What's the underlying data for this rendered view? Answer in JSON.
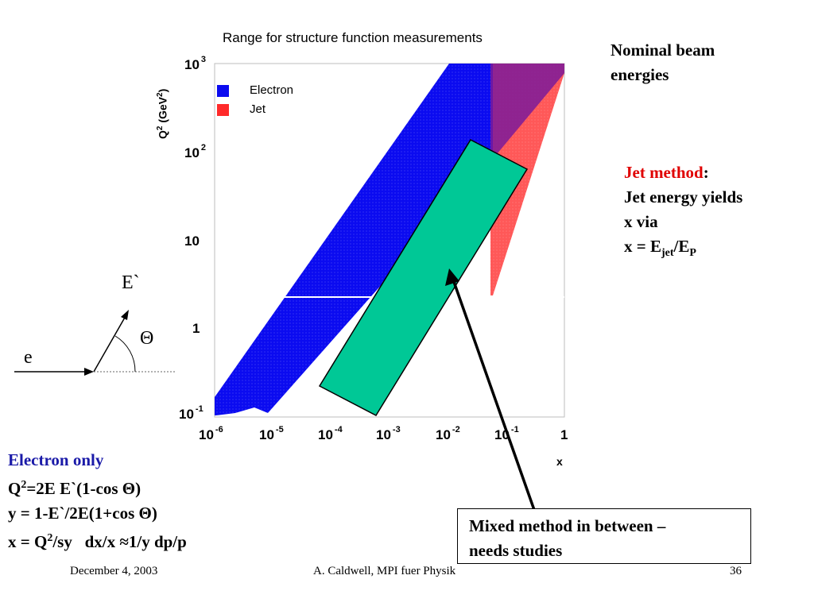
{
  "plot": {
    "title": "Range for structure function measurements",
    "y_axis_label": "Q",
    "y_axis_sup": "2",
    "y_axis_unit": " (GeV",
    "y_axis_unit_sup": "2",
    "y_axis_close": ")",
    "x_axis_label": "x",
    "legend": {
      "electron": "Electron",
      "jet": "Jet",
      "electron_color": "#0b0bf0",
      "jet_color": "#ff2a2a"
    },
    "y_ticks": [
      {
        "base": "10",
        "exp": "3"
      },
      {
        "base": "10",
        "exp": "2"
      },
      {
        "base": "10",
        "exp": ""
      },
      {
        "base": "1",
        "exp": ""
      },
      {
        "base": "10",
        "exp": "-1"
      }
    ],
    "x_ticks": [
      {
        "base": "10",
        "exp": "-6"
      },
      {
        "base": "10",
        "exp": "-5"
      },
      {
        "base": "10",
        "exp": "-4"
      },
      {
        "base": "10",
        "exp": "-3"
      },
      {
        "base": "10",
        "exp": "-2"
      },
      {
        "base": "10",
        "exp": "-1"
      },
      {
        "base": "1",
        "exp": ""
      }
    ],
    "mixed_region_color": "#00c896"
  },
  "nominal": {
    "line1": "Nominal beam",
    "line2": "energies"
  },
  "jet_method": {
    "title": "Jet method",
    "colon": ":",
    "line1": "Jet energy yields",
    "line2": "x via",
    "formula_prefix": "x = E",
    "sub1": "jet",
    "formula_mid": "/E",
    "sub2": "P"
  },
  "diagram": {
    "e_label": "e",
    "e_prime_label": "E`",
    "theta_label": "Θ"
  },
  "electron_only": {
    "title": "Electron only",
    "line1_a": "Q",
    "line1_sup": "2",
    "line1_b": "=2E E`(1-cos Θ)",
    "line2": "y = 1-E`/2E(1+cos Θ)",
    "line3_a": "x = Q",
    "line3_sup": "2",
    "line3_b": "/sy   dx/x ≈1/y dp/p"
  },
  "mixed": {
    "line1": "Mixed method in between –",
    "line2": "needs studies"
  },
  "footer": {
    "date": "December 4, 2003",
    "author": "A. Caldwell, MPI fuer Physik",
    "page": "36"
  }
}
